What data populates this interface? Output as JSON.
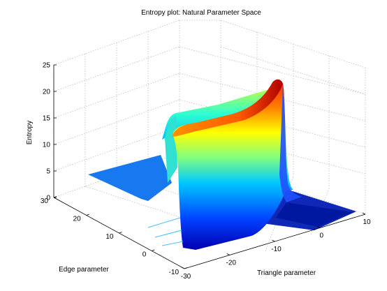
{
  "chart_data": {
    "type": "surface",
    "title": "Entropy plot: Natural Parameter Space",
    "xlabel": "Triangle parameter",
    "ylabel": "Edge parameter",
    "zlabel": "Entropy",
    "x_ticks": [
      -30,
      -20,
      -10,
      0,
      10
    ],
    "y_ticks": [
      -10,
      0,
      10,
      20,
      30
    ],
    "z_ticks": [
      0,
      5,
      10,
      15,
      20,
      25
    ],
    "xlim": [
      -30,
      10
    ],
    "ylim": [
      -10,
      30
    ],
    "zlim": [
      0,
      25
    ],
    "grid": true,
    "colormap": "jet",
    "surface_ridge": {
      "description_points": [
        {
          "triangle": -30,
          "edge": 30,
          "entropy": 4
        },
        {
          "triangle": -22,
          "edge": 25,
          "entropy": 10
        },
        {
          "triangle": -20,
          "edge": 16,
          "entropy": 15
        },
        {
          "triangle": -15,
          "edge": 5,
          "entropy": 18
        },
        {
          "triangle": -12,
          "edge": -2,
          "entropy": 22
        }
      ]
    },
    "colors": {
      "low": "#00008f",
      "mid_low": "#0080ff",
      "mid": "#80ff80",
      "mid_high": "#ff8000",
      "high": "#800000"
    }
  }
}
